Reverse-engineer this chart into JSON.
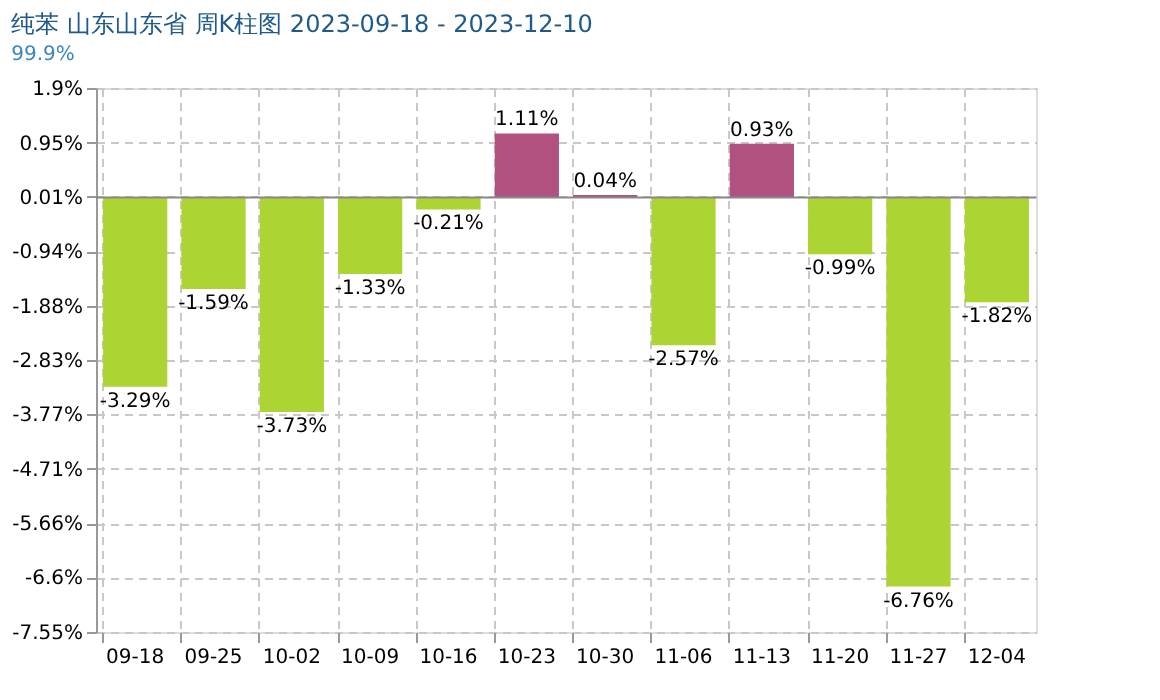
{
  "chart_data": {
    "type": "bar",
    "title": "纯苯 山东山东省 周K柱图 2023-09-18 - 2023-12-10",
    "subtitle": "99.9%",
    "categories": [
      "09-18",
      "09-25",
      "10-02",
      "10-09",
      "10-16",
      "10-23",
      "10-30",
      "11-06",
      "11-13",
      "11-20",
      "11-27",
      "12-04"
    ],
    "values": [
      -3.29,
      -1.59,
      -3.73,
      -1.33,
      -0.21,
      1.11,
      0.04,
      -2.57,
      0.93,
      -0.99,
      -6.76,
      -1.82
    ],
    "value_labels": [
      "-3.29%",
      "-1.59%",
      "-3.73%",
      "-1.33%",
      "-0.21%",
      "1.11%",
      "0.04%",
      "-2.57%",
      "0.93%",
      "-0.99%",
      "-6.76%",
      "-1.82%"
    ],
    "colors": [
      "#acd433",
      "#acd433",
      "#acd433",
      "#acd433",
      "#acd433",
      "#b0517f",
      "#b0517f",
      "#acd433",
      "#b0517f",
      "#acd433",
      "#acd433",
      "#acd433"
    ],
    "ylim": [
      -7.55,
      1.9
    ],
    "yticks": [
      {
        "value": 1.9,
        "label": "1.9%"
      },
      {
        "value": 0.95,
        "label": "0.95%"
      },
      {
        "value": 0.01,
        "label": "0.01%"
      },
      {
        "value": -0.94,
        "label": "-0.94%"
      },
      {
        "value": -1.88,
        "label": "-1.88%"
      },
      {
        "value": -2.83,
        "label": "-2.83%"
      },
      {
        "value": -3.77,
        "label": "-3.77%"
      },
      {
        "value": -4.71,
        "label": "-4.71%"
      },
      {
        "value": -5.66,
        "label": "-5.66%"
      },
      {
        "value": -6.6,
        "label": "-6.6%"
      },
      {
        "value": -7.55,
        "label": "-7.55%"
      }
    ],
    "grid": true
  }
}
